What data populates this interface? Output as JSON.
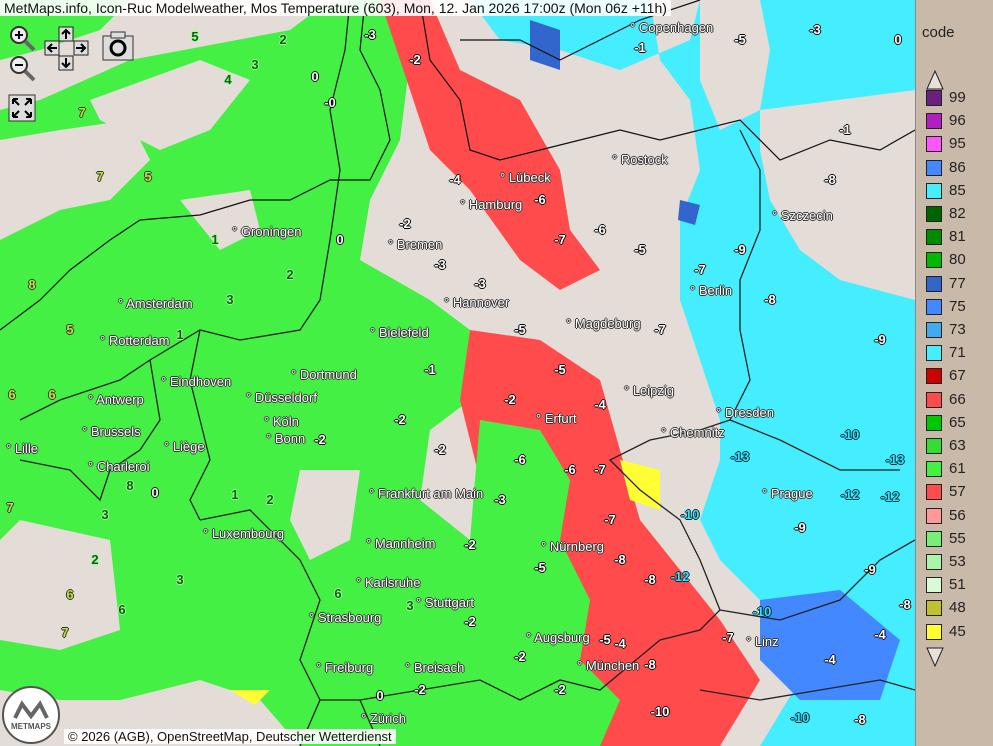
{
  "title": "MetMaps.info, Icon-Ruc Modelweather, Mos Temperature (603), Mon, 12. Jan 2026 17:00z (Mon 06z +11h)",
  "controls": {
    "zoom_in": "zoom-in-icon",
    "zoom_out": "zoom-out-icon",
    "pan": "pan-arrows-icon",
    "screenshot": "camera-icon",
    "fullscreen": "fullscreen-icon"
  },
  "copyright": "© 2026 (AGB), OpenStreetMap, Deutscher Wetterdienst",
  "logo": "METMAPS",
  "colors": {
    "land": "#e4dcd6",
    "rain_green": "#44ee44",
    "snow_cyan": "#44eeee",
    "red": "#ff4b4b"
  },
  "legend": {
    "title": "code",
    "items": [
      {
        "code": "99",
        "color": "#6b1f7f"
      },
      {
        "code": "96",
        "color": "#b01fc0"
      },
      {
        "code": "95",
        "color": "#ff55ff"
      },
      {
        "code": "86",
        "color": "#4488ff"
      },
      {
        "code": "85",
        "color": "#44eeff"
      },
      {
        "code": "82",
        "color": "#006400"
      },
      {
        "code": "81",
        "color": "#008a00"
      },
      {
        "code": "80",
        "color": "#00b800"
      },
      {
        "code": "77",
        "color": "#3366cc"
      },
      {
        "code": "75",
        "color": "#4488ff"
      },
      {
        "code": "73",
        "color": "#44aaee"
      },
      {
        "code": "71",
        "color": "#44eeff"
      },
      {
        "code": "67",
        "color": "#cc0000"
      },
      {
        "code": "66",
        "color": "#ff4b4b"
      },
      {
        "code": "65",
        "color": "#00c800"
      },
      {
        "code": "63",
        "color": "#33dd33"
      },
      {
        "code": "61",
        "color": "#44f044"
      },
      {
        "code": "57",
        "color": "#ff4b4b"
      },
      {
        "code": "56",
        "color": "#ff9999"
      },
      {
        "code": "55",
        "color": "#77ee77"
      },
      {
        "code": "53",
        "color": "#aaf5aa"
      },
      {
        "code": "51",
        "color": "#d8fad8"
      },
      {
        "code": "48",
        "color": "#c0c030"
      },
      {
        "code": "45",
        "color": "#ffff33"
      }
    ]
  },
  "cities": [
    "Copenhagen",
    "Rostock",
    "Lübeck",
    "Hamburg",
    "Szczecin",
    "Groningen",
    "Bremen",
    "Amsterdam",
    "Hannover",
    "Berlin",
    "Rotterdam",
    "Bielefeld",
    "Magdeburg",
    "Dortmund",
    "Eindhoven",
    "Antwerp",
    "Düsseldorf",
    "Leipzig",
    "Dresden",
    "Brussels",
    "Köln",
    "Erfurt",
    "Chemnitz",
    "Lille",
    "Liège",
    "Bonn",
    "Charleroi",
    "Frankfurt am Main",
    "Prague",
    "Luxembourg",
    "Mannheim",
    "Nürnberg",
    "Karlsruhe",
    "Stuttgart",
    "Strasbourg",
    "Augsburg",
    "Linz",
    "München",
    "Freiburg",
    "Breisach",
    "Zürich"
  ],
  "temperatures": [
    "-3",
    "-2",
    "-0",
    "0",
    "2",
    "3",
    "4",
    "5",
    "7",
    "7",
    "5",
    "8",
    "3",
    "2",
    "0",
    "-2",
    "-3",
    "-3",
    "-5",
    "-5",
    "-4",
    "-6",
    "-7",
    "-8",
    "-7",
    "-8",
    "-8",
    "-1",
    "-3",
    "-5",
    "0",
    "-9",
    "-10",
    "-13",
    "-12",
    "-12",
    "-9",
    "-9",
    "-8",
    "-10",
    "-8",
    "-10",
    "-13",
    "-12",
    "8",
    "0",
    "3",
    "6",
    "6",
    "7",
    "7",
    "6",
    "6",
    "5",
    "1",
    "1",
    "6",
    "3",
    "-2",
    "-2",
    "-2",
    "-5",
    "-8",
    "-2",
    "-3",
    "-2",
    "-2",
    "-2",
    "2",
    "1",
    "-2",
    "-5",
    "-4",
    "-7",
    "-10",
    "-4",
    "-4",
    "-10",
    "-2",
    "0",
    "-1",
    "-4",
    "-6",
    "-7",
    "-6",
    "-5",
    "-9",
    "-7",
    "2",
    "3",
    "-1",
    "-6",
    "-7",
    "-8"
  ]
}
